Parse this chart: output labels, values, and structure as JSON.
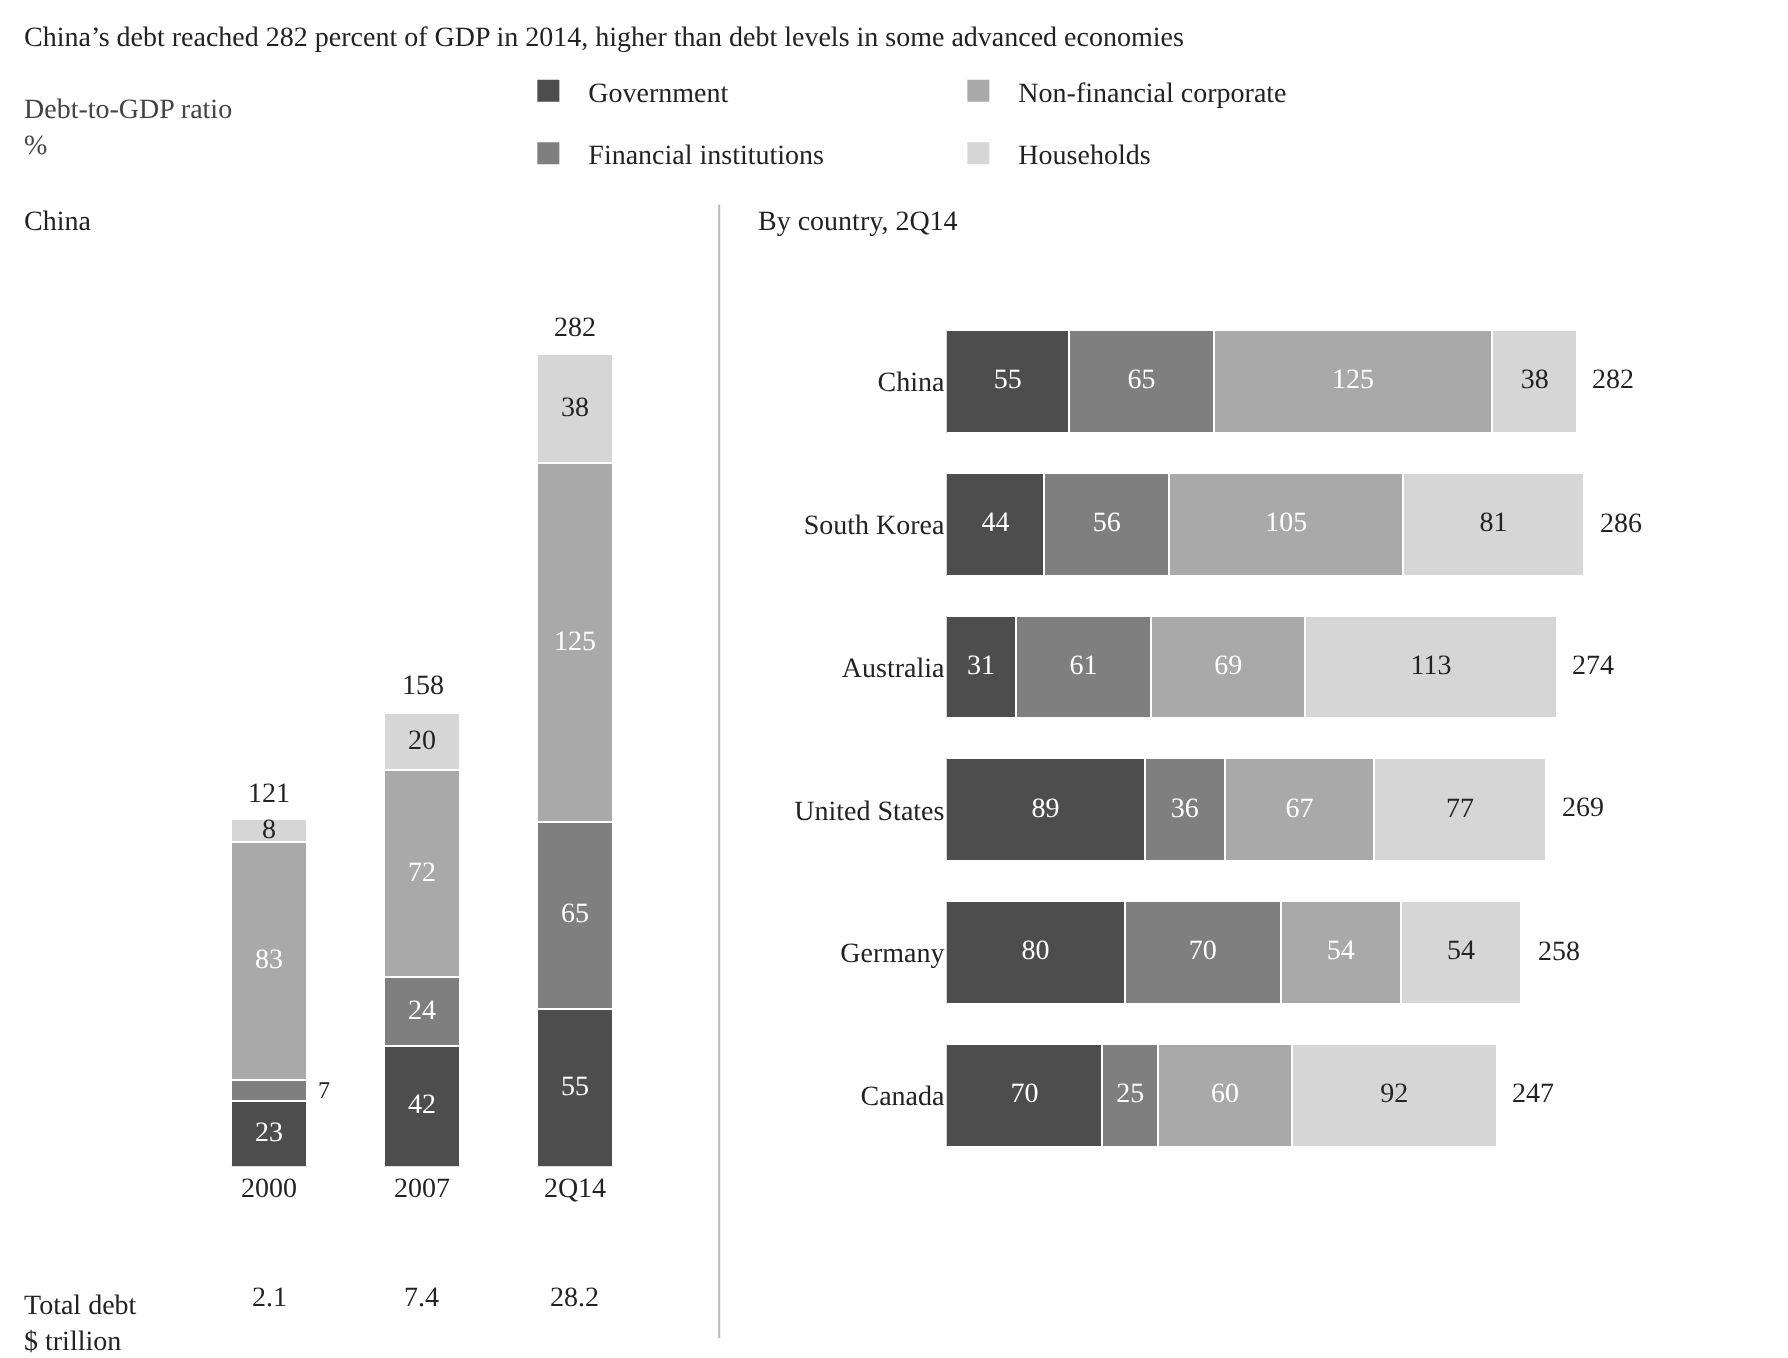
{
  "chart_data": [
    {
      "type": "bar",
      "stacked": true,
      "title": "China’s debt reached 282 percent of GDP in 2014, higher than debt levels in some advanced economies",
      "ylabel": "Debt-to-GDP ratio\n%",
      "subtitle": "China",
      "categories": [
        "2000",
        "2007",
        "2Q14"
      ],
      "data_labels": true,
      "tick_labels": "x",
      "series": [
        {
          "color": "#4d4d4d",
          "values": [
            23,
            42,
            55
          ]
        },
        {
          "color": "#7f7f7f",
          "values": [
            7,
            24,
            65
          ]
        },
        {
          "color": "#a9a9a9",
          "values": [
            83,
            72,
            125
          ]
        },
        {
          "color": "#d6d6d6",
          "values": [
            8,
            20,
            38
          ]
        }
      ],
      "totals": [
        "121",
        "158",
        "282"
      ],
      "annotations": [
        "Total debt\n$ trillion",
        "2.1",
        "7.4",
        "28.2"
      ]
    },
    {
      "type": "bar",
      "stacked": true,
      "orientation": "horizontal",
      "subtitle": "By country, 2Q14",
      "categories": [
        "China",
        "South Korea",
        "Australia",
        "United States",
        "Germany",
        "Canada"
      ],
      "data_labels": true,
      "tick_labels": "y",
      "legend": "top",
      "series": [
        {
          "name": "Government",
          "color": "#4d4d4d",
          "values": [
            55,
            44,
            31,
            89,
            80,
            70
          ]
        },
        {
          "name": "Financial institutions",
          "color": "#7f7f7f",
          "values": [
            65,
            56,
            61,
            36,
            70,
            25
          ]
        },
        {
          "name": "Non-financial corporate",
          "color": "#a9a9a9",
          "values": [
            125,
            105,
            69,
            67,
            54,
            60
          ]
        },
        {
          "name": "Households",
          "color": "#d6d6d6",
          "values": [
            38,
            81,
            113,
            77,
            54,
            92
          ]
        }
      ],
      "totals": [
        "282",
        "286",
        "274",
        "269",
        "258",
        "247"
      ]
    }
  ]
}
